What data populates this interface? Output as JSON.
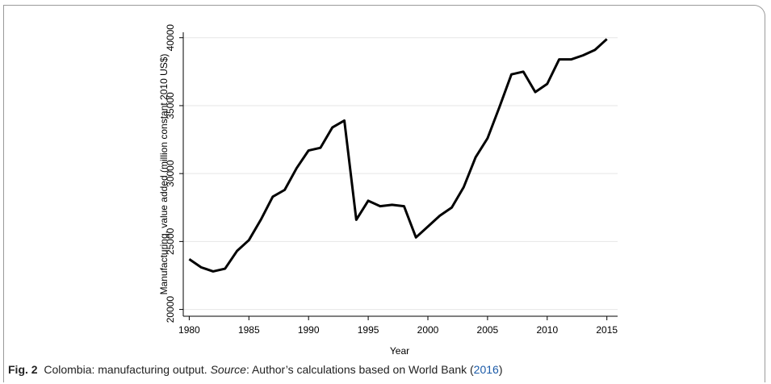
{
  "chart_data": {
    "type": "line",
    "x_label": "Year",
    "y_label": "Manufacturing, value added (million constant 2010 US$)",
    "x": [
      1980,
      1981,
      1982,
      1983,
      1984,
      1985,
      1986,
      1987,
      1988,
      1989,
      1990,
      1991,
      1992,
      1993,
      1994,
      1995,
      1996,
      1997,
      1998,
      1999,
      2000,
      2001,
      2002,
      2003,
      2004,
      2005,
      2006,
      2007,
      2008,
      2009,
      2010,
      2011,
      2012,
      2013,
      2014,
      2015
    ],
    "series": [
      {
        "name": "Manufacturing, value added",
        "color": "#000000",
        "values": [
          23700,
          23100,
          22800,
          23000,
          24300,
          25100,
          26600,
          28300,
          28800,
          30400,
          31700,
          31900,
          33400,
          33900,
          26600,
          28000,
          27600,
          27700,
          27600,
          25300,
          26100,
          26900,
          27500,
          29000,
          31200,
          32600,
          34900,
          37300,
          37500,
          36000,
          36600,
          38400,
          38400,
          38700,
          39100,
          39900
        ]
      }
    ],
    "xlim": [
      1979.5,
      2015.9
    ],
    "xticks": [
      1980,
      1985,
      1990,
      1995,
      2000,
      2005,
      2010,
      2015
    ],
    "ylim": [
      19500,
      40400
    ],
    "yticks": [
      20000,
      25000,
      30000,
      35000,
      40000
    ],
    "grid": true
  },
  "caption": {
    "label": "Fig. 2",
    "text": "  Colombia: manufacturing output. ",
    "source_label": "Source",
    "source_text": ": Author’s calculations based on World Bank (",
    "year": "2016",
    "close": ")"
  }
}
